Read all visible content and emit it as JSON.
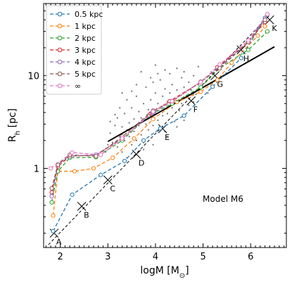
{
  "chart_data": {
    "type": "line",
    "xlabel": "logM [M",
    "xlabel_sub": "⊙",
    "xlabel_end": "]",
    "ylabel": "R",
    "ylabel_sub": "h",
    "ylabel_end": " [pc]",
    "x_ticks": [
      2,
      3,
      4,
      5,
      6
    ],
    "x_tick_labels": [
      "2",
      "3",
      "4",
      "5",
      "6"
    ],
    "x_range": [
      1.65,
      6.75
    ],
    "y_scale": "log",
    "y_range": [
      0.14,
      60
    ],
    "y_ticks": [
      1,
      10
    ],
    "y_tick_labels": [
      "1",
      "10"
    ],
    "annotation": "Model M6",
    "legend_position": "top-left",
    "series": [
      {
        "name": "0.5 kpc",
        "color": "#1f77b4",
        "x": [
          1.85,
          2.25,
          2.85,
          3.35,
          3.75,
          4.1,
          4.6,
          5.2,
          5.8,
          6.3
        ],
        "y": [
          0.21,
          0.52,
          0.85,
          1.2,
          2.0,
          2.7,
          3.7,
          7.6,
          15.5,
          42
        ]
      },
      {
        "name": "1 kpc",
        "color": "#ff7f0e",
        "x": [
          1.85,
          1.95,
          2.3,
          2.7,
          3.1,
          3.55,
          3.95,
          4.45,
          4.95,
          5.3,
          5.6,
          6.15,
          6.3
        ],
        "y": [
          0.31,
          0.93,
          0.93,
          1.0,
          1.3,
          2.1,
          3.4,
          5.2,
          6.7,
          9.0,
          13.8,
          27,
          34
        ]
      },
      {
        "name": "2 kpc",
        "color": "#2ca02c",
        "x": [
          1.82,
          1.95,
          2.2,
          2.75,
          3.3,
          3.85,
          4.35,
          4.95,
          5.35,
          5.95,
          6.35
        ],
        "y": [
          0.43,
          0.93,
          1.3,
          1.32,
          2.0,
          3.7,
          5.0,
          7.5,
          12.0,
          19.0,
          30
        ]
      },
      {
        "name": "3 kpc",
        "color": "#d62728",
        "x": [
          1.82,
          1.95,
          2.2,
          2.75,
          3.3,
          3.9,
          4.3,
          4.95,
          5.3,
          5.95,
          6.3
        ],
        "y": [
          0.55,
          1.05,
          1.35,
          1.4,
          2.1,
          3.9,
          5.3,
          8.5,
          12.3,
          23,
          38
        ]
      },
      {
        "name": "4 kpc",
        "color": "#9467bd",
        "x": [
          1.82,
          1.95,
          2.2,
          2.75,
          3.3,
          3.95,
          4.35,
          4.95,
          5.35,
          5.95,
          6.35
        ],
        "y": [
          0.5,
          1.1,
          1.35,
          1.4,
          2.1,
          4.0,
          5.3,
          8.5,
          12.5,
          23,
          46
        ]
      },
      {
        "name": "5 kpc",
        "color": "#8c564b",
        "x": [
          1.82,
          1.95,
          2.2,
          2.75,
          3.3,
          3.95,
          4.35,
          4.95,
          5.35,
          5.95,
          6.3
        ],
        "y": [
          0.61,
          1.1,
          1.4,
          1.35,
          2.2,
          4.2,
          5.3,
          8.6,
          12.0,
          23,
          40
        ]
      },
      {
        "name": "∞",
        "color": "#e377c2",
        "x": [
          1.8,
          2.25,
          2.85,
          3.3,
          3.95,
          4.35,
          4.95,
          5.35,
          5.95,
          6.35
        ],
        "y": [
          1.0,
          1.48,
          1.4,
          2.1,
          4.1,
          5.3,
          8.5,
          13.2,
          24,
          46
        ]
      }
    ],
    "fit_line": {
      "x": [
        3.0,
        6.5
      ],
      "y": [
        1.95,
        20.5
      ]
    },
    "dashed_line": {
      "x": [
        1.75,
        6.4
      ],
      "y": [
        0.15,
        45
      ],
      "markers": [
        {
          "label": "A",
          "x": 1.87,
          "y": 0.2
        },
        {
          "label": "B",
          "x": 2.45,
          "y": 0.39
        },
        {
          "label": "C",
          "x": 3.0,
          "y": 0.75
        },
        {
          "label": "D",
          "x": 3.6,
          "y": 1.42
        },
        {
          "label": "E",
          "x": 4.15,
          "y": 2.68
        },
        {
          "label": "F",
          "x": 4.75,
          "y": 5.35
        },
        {
          "label": "G",
          "x": 5.25,
          "y": 10.0
        },
        {
          "label": "H",
          "x": 5.8,
          "y": 19.0
        },
        {
          "label": "K",
          "x": 6.4,
          "y": 40.0
        }
      ]
    },
    "scatter": [
      [
        2.95,
        1.5
      ],
      [
        3.0,
        1.8
      ],
      [
        3.05,
        2.4
      ],
      [
        3.1,
        1.9
      ],
      [
        3.15,
        2.9
      ],
      [
        3.2,
        1.7
      ],
      [
        3.2,
        3.5
      ],
      [
        3.25,
        2.2
      ],
      [
        3.3,
        2.8
      ],
      [
        3.3,
        1.5
      ],
      [
        3.35,
        2.0
      ],
      [
        3.35,
        3.9
      ],
      [
        3.4,
        2.6
      ],
      [
        3.4,
        1.3
      ],
      [
        3.45,
        3.1
      ],
      [
        3.45,
        2.2
      ],
      [
        3.5,
        4.5
      ],
      [
        3.5,
        1.8
      ],
      [
        3.55,
        2.5
      ],
      [
        3.55,
        3.4
      ],
      [
        3.6,
        2.0
      ],
      [
        3.6,
        6.0
      ],
      [
        3.65,
        2.9
      ],
      [
        3.65,
        4.1
      ],
      [
        3.7,
        2.3
      ],
      [
        3.7,
        3.5
      ],
      [
        3.75,
        5.0
      ],
      [
        3.75,
        1.9
      ],
      [
        3.8,
        3.0
      ],
      [
        3.8,
        7.5
      ],
      [
        3.85,
        2.6
      ],
      [
        3.85,
        4.3
      ],
      [
        3.9,
        3.6
      ],
      [
        3.9,
        5.5
      ],
      [
        3.95,
        2.9
      ],
      [
        3.95,
        8.5
      ],
      [
        4.0,
        4.0
      ],
      [
        4.0,
        6.5
      ],
      [
        4.05,
        3.3
      ],
      [
        4.05,
        5.0
      ],
      [
        4.1,
        9.0
      ],
      [
        4.1,
        4.5
      ],
      [
        4.15,
        3.7
      ],
      [
        4.15,
        6.0
      ],
      [
        4.2,
        7.2
      ],
      [
        4.2,
        2.5
      ],
      [
        4.25,
        5.2
      ],
      [
        4.25,
        3.9
      ],
      [
        4.3,
        10.5
      ],
      [
        4.3,
        6.5
      ],
      [
        4.35,
        4.5
      ],
      [
        4.35,
        8.0
      ],
      [
        4.4,
        5.5
      ],
      [
        4.4,
        3.2
      ],
      [
        4.45,
        7.0
      ],
      [
        4.45,
        12.0
      ],
      [
        4.5,
        6.0
      ],
      [
        4.5,
        4.2
      ],
      [
        4.55,
        9.5
      ],
      [
        4.55,
        5.0
      ],
      [
        4.6,
        7.5
      ],
      [
        4.6,
        11.0
      ],
      [
        4.65,
        6.0
      ],
      [
        4.7,
        8.5
      ],
      [
        4.7,
        4.8
      ],
      [
        4.75,
        7.0
      ],
      [
        4.8,
        10.0
      ],
      [
        4.85,
        6.3
      ],
      [
        4.9,
        8.0
      ],
      [
        5.0,
        9.0
      ],
      [
        3.9,
        9.5
      ],
      [
        3.7,
        11.0
      ],
      [
        4.05,
        10.5
      ],
      [
        3.6,
        8.0
      ],
      [
        3.5,
        6.8
      ],
      [
        4.2,
        11.5
      ],
      [
        3.3,
        6.5
      ],
      [
        3.25,
        4.5
      ],
      [
        3.15,
        3.8
      ],
      [
        3.05,
        3.2
      ],
      [
        4.45,
        2.8
      ],
      [
        4.6,
        3.3
      ],
      [
        3.95,
        1.8
      ],
      [
        3.75,
        1.6
      ],
      [
        4.25,
        2.2
      ],
      [
        4.8,
        5.2
      ],
      [
        5.1,
        6.5
      ],
      [
        4.9,
        12.5
      ],
      [
        3.4,
        5.5
      ],
      [
        4.0,
        13.0
      ]
    ]
  },
  "colors": {
    "fit_line": "#000000",
    "dashed_line": "#000000",
    "scatter": "#808080"
  }
}
